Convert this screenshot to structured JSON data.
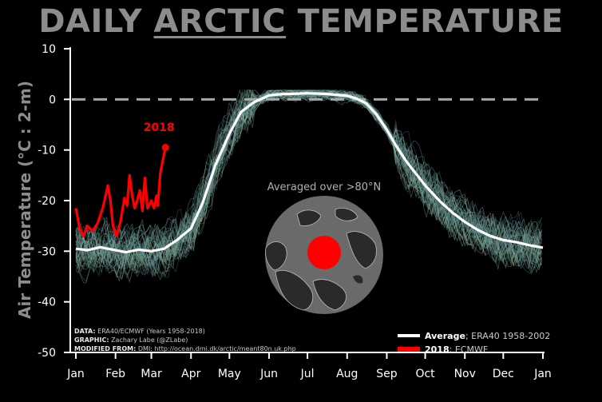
{
  "title": {
    "pre": "DAILY ",
    "mid": "ARCTIC",
    "post": " TEMPERATURE"
  },
  "colors": {
    "average": "#ffffff",
    "current": "#ff0000",
    "title": "#8c8c8c",
    "ensemble": "#6f9e8a"
  },
  "inset": {
    "label": "Averaged over >80°N"
  },
  "notes": [
    {
      "key": "DATA:",
      "text": " ERA40/ECMWF (Years 1958-2018)"
    },
    {
      "key": "GRAPHIC:",
      "text": " Zachary Labe (@ZLabe)"
    },
    {
      "key": "MODIFIED FROM:",
      "text": " DMI: http://ocean.dmi.dk/arctic/meant80n.uk.php"
    }
  ],
  "chart_data": {
    "type": "line",
    "ylabel": "Air Temperature (°C : 2-m)",
    "ylim": [
      -50,
      10
    ],
    "yticks": [
      10,
      0,
      -10,
      -20,
      -30,
      -40,
      -50
    ],
    "xlim": [
      1,
      366
    ],
    "xticks": [
      {
        "label": "Jan",
        "day": 1
      },
      {
        "label": "Feb",
        "day": 32
      },
      {
        "label": "Mar",
        "day": 60
      },
      {
        "label": "Apr",
        "day": 91
      },
      {
        "label": "May",
        "day": 121
      },
      {
        "label": "Jun",
        "day": 152
      },
      {
        "label": "Jul",
        "day": 182
      },
      {
        "label": "Aug",
        "day": 213
      },
      {
        "label": "Sep",
        "day": 244
      },
      {
        "label": "Oct",
        "day": 274
      },
      {
        "label": "Nov",
        "day": 305
      },
      {
        "label": "Dec",
        "day": 335
      },
      {
        "label": "Jan",
        "day": 366
      }
    ],
    "reference_line": 0,
    "grid": false,
    "legend_position": "bottom-right",
    "series": [
      {
        "name": "Average",
        "legend_detail": "; ERA40 1958-2002",
        "x": [
          1,
          10,
          20,
          32,
          40,
          50,
          60,
          70,
          80,
          91,
          100,
          110,
          121,
          130,
          140,
          152,
          160,
          170,
          182,
          195,
          205,
          213,
          220,
          228,
          236,
          244,
          252,
          260,
          274,
          285,
          295,
          305,
          315,
          325,
          335,
          345,
          355,
          366
        ],
        "y": [
          -29.5,
          -29.8,
          -29.2,
          -29.8,
          -30.2,
          -29.7,
          -30.0,
          -29.5,
          -27.8,
          -25.5,
          -20.5,
          -13.0,
          -6.8,
          -2.5,
          -0.6,
          0.8,
          1.0,
          1.1,
          1.2,
          1.1,
          0.9,
          0.7,
          0.2,
          -0.8,
          -3.0,
          -6.0,
          -9.5,
          -12.5,
          -17.0,
          -20.0,
          -22.3,
          -24.2,
          -25.8,
          -27.0,
          -27.8,
          -28.2,
          -28.8,
          -29.3
        ]
      },
      {
        "name": "2018",
        "legend_detail": "; ECMWF",
        "x": [
          1,
          4,
          7,
          10,
          14,
          18,
          22,
          26,
          28,
          30,
          33,
          36,
          39,
          41,
          43,
          45,
          47,
          49,
          51,
          53,
          55,
          57,
          60,
          62,
          64,
          65,
          67,
          69,
          71
        ],
        "y": [
          -21.5,
          -25.5,
          -27.0,
          -25.0,
          -26.0,
          -24.5,
          -21.5,
          -17.0,
          -20.0,
          -25.0,
          -27.0,
          -24.0,
          -19.5,
          -21.0,
          -15.0,
          -19.0,
          -21.5,
          -20.0,
          -18.0,
          -22.0,
          -15.5,
          -21.5,
          -20.0,
          -21.5,
          -19.0,
          -21.0,
          -14.5,
          -12.0,
          -9.5
        ]
      }
    ],
    "annotations": [
      {
        "text": "2018",
        "x": 66,
        "y": -6.3
      }
    ]
  }
}
